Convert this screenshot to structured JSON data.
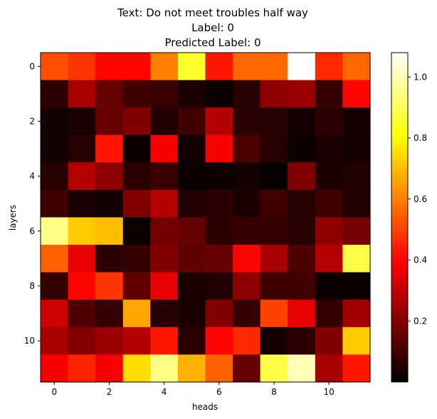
{
  "chart_data": {
    "type": "heatmap",
    "title_lines": [
      "Text: Do not meet troubles half way",
      "Label: 0",
      "Predicted Label: 0"
    ],
    "xlabel": "heads",
    "ylabel": "layers",
    "x_ticks": [
      0,
      2,
      4,
      6,
      8,
      10
    ],
    "y_ticks": [
      0,
      2,
      4,
      6,
      8,
      10
    ],
    "colormap": "hot",
    "colorbar": {
      "vmin": 0.0,
      "vmax": 1.08,
      "ticks": [
        0.2,
        0.4,
        0.6,
        0.8,
        1.0
      ],
      "tick_labels": [
        "0.2",
        "0.4",
        "0.6",
        "0.8",
        "1.0"
      ]
    },
    "rows": 12,
    "cols": 12,
    "values": [
      [
        0.52,
        0.48,
        0.4,
        0.4,
        0.6,
        0.85,
        0.43,
        0.56,
        0.56,
        1.08,
        0.46,
        0.56
      ],
      [
        0.07,
        0.26,
        0.16,
        0.1,
        0.09,
        0.04,
        0.02,
        0.06,
        0.22,
        0.24,
        0.08,
        0.4
      ],
      [
        0.03,
        0.04,
        0.16,
        0.2,
        0.05,
        0.1,
        0.28,
        0.07,
        0.06,
        0.03,
        0.07,
        0.03
      ],
      [
        0.03,
        0.06,
        0.43,
        0.02,
        0.38,
        0.03,
        0.38,
        0.12,
        0.06,
        0.02,
        0.04,
        0.03
      ],
      [
        0.06,
        0.28,
        0.22,
        0.07,
        0.09,
        0.02,
        0.02,
        0.03,
        0.01,
        0.2,
        0.04,
        0.05
      ],
      [
        0.1,
        0.04,
        0.03,
        0.2,
        0.28,
        0.05,
        0.07,
        0.04,
        0.1,
        0.06,
        0.1,
        0.05
      ],
      [
        0.95,
        0.72,
        0.7,
        0.02,
        0.18,
        0.16,
        0.07,
        0.08,
        0.08,
        0.06,
        0.22,
        0.18
      ],
      [
        0.55,
        0.36,
        0.07,
        0.08,
        0.2,
        0.15,
        0.16,
        0.4,
        0.26,
        0.12,
        0.28,
        0.88
      ],
      [
        0.08,
        0.4,
        0.48,
        0.15,
        0.36,
        0.04,
        0.05,
        0.22,
        0.1,
        0.1,
        0.02,
        0.02
      ],
      [
        0.32,
        0.12,
        0.08,
        0.66,
        0.06,
        0.04,
        0.2,
        0.08,
        0.5,
        0.36,
        0.08,
        0.25
      ],
      [
        0.26,
        0.2,
        0.24,
        0.28,
        0.43,
        0.06,
        0.4,
        0.46,
        0.03,
        0.07,
        0.2,
        0.72
      ],
      [
        0.38,
        0.45,
        0.38,
        0.75,
        0.95,
        0.68,
        0.55,
        0.16,
        0.88,
        1.0,
        0.26,
        0.43
      ]
    ]
  }
}
